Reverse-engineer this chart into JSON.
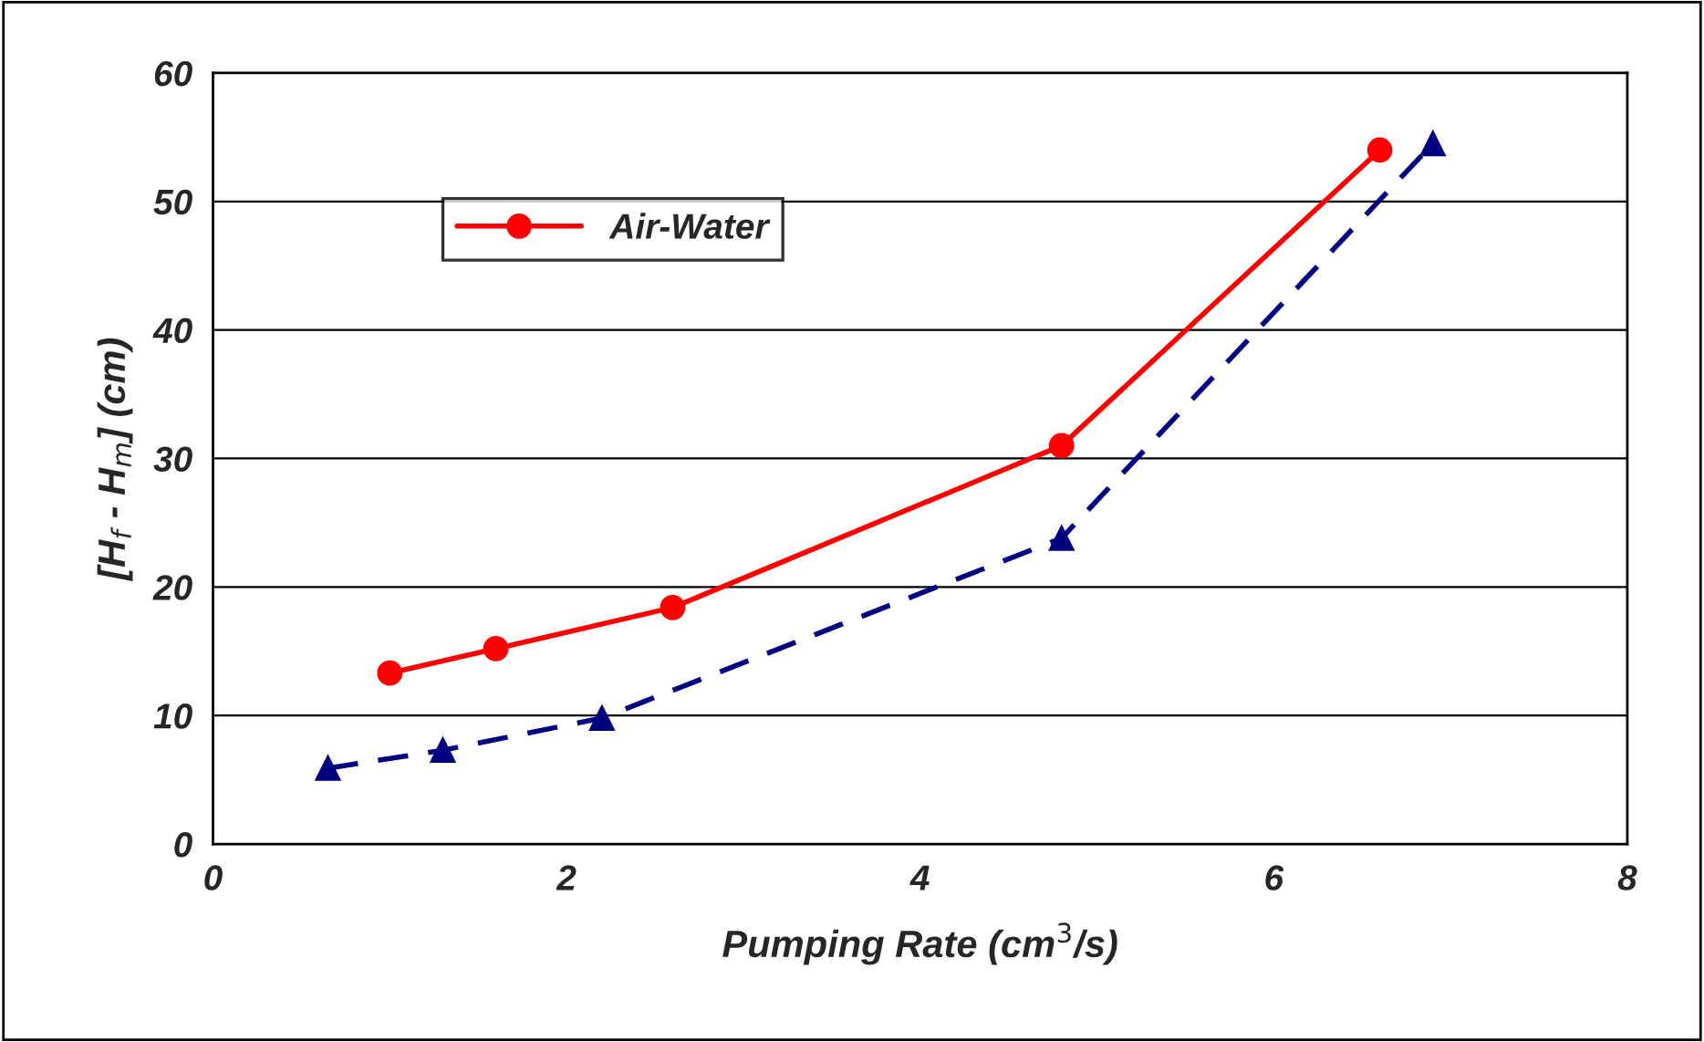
{
  "chart_data": {
    "type": "line",
    "xlabel": "Pumping Rate (cm$^{3}$/s)",
    "ylabel": "[H$_{f}$ - H$_{m}$] (cm)",
    "xlim": [
      0,
      8
    ],
    "xticks": [
      0,
      2,
      4,
      6,
      8
    ],
    "ylim": [
      0,
      60
    ],
    "yticks": [
      0,
      10,
      20,
      30,
      40,
      50,
      60
    ],
    "grid": "y",
    "legend": "top left",
    "series": [
      {
        "name": "Air-Water",
        "color": "#ff0000",
        "marker": "circle",
        "line_style": "solid",
        "x": [
          1.0,
          1.6,
          2.6,
          4.8,
          6.6
        ],
        "values": [
          13.3,
          15.2,
          18.4,
          31,
          54
        ]
      },
      {
        "color": "#000080",
        "marker": "triangle",
        "line_style": "dashed",
        "x": [
          0.65,
          1.3,
          2.2,
          4.8,
          6.9
        ],
        "values": [
          5.9,
          7.3,
          9.8,
          23.8,
          54.5
        ]
      }
    ]
  }
}
